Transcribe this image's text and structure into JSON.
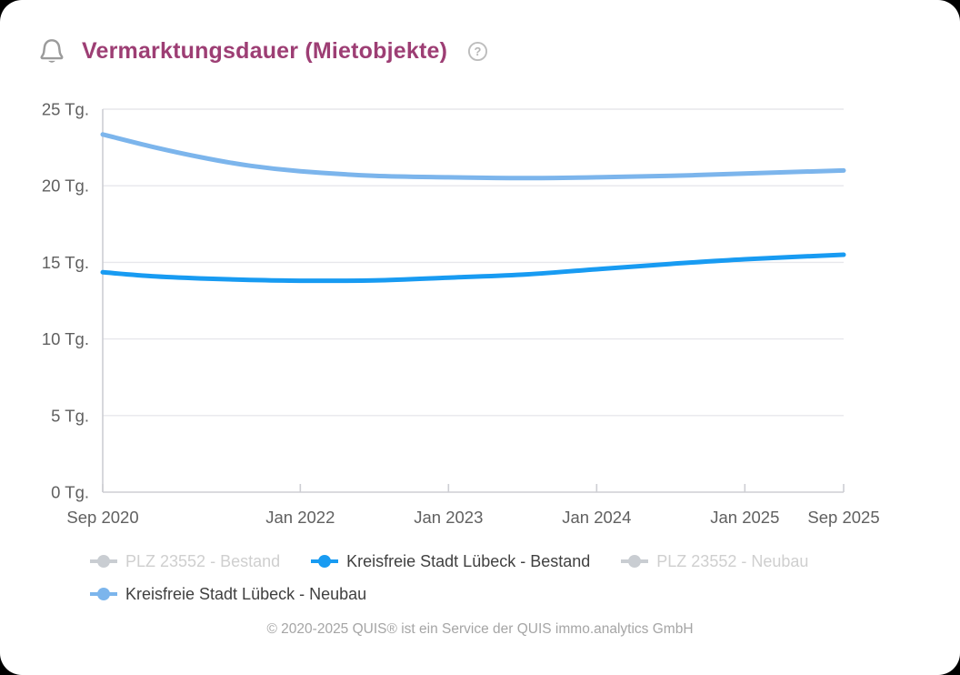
{
  "header": {
    "title": "Vermarktungsdauer (Mietobjekte)",
    "help_glyph": "?"
  },
  "colors": {
    "title": "#9d3e74",
    "axis_text": "#606060",
    "grid_line": "#e7e7ec",
    "axis_line": "#cdced3",
    "bestand_blue": "#189bf2",
    "neubau_blue": "#7cb5ec",
    "legend_disabled_marker": "#c9cdd2",
    "legend_disabled_text": "#cfcfcf",
    "legend_active_text": "#404040",
    "icon_gray": "#9b9b9b",
    "help_gray": "#b5b5b5"
  },
  "chart_data": {
    "type": "line",
    "title": "Vermarktungsdauer (Mietobjekte)",
    "ylabel": "",
    "xlabel": "",
    "y_unit": "Tg.",
    "ylim": [
      0,
      25
    ],
    "y_ticks": [
      0,
      5,
      10,
      15,
      20,
      25
    ],
    "x_range_months": 60,
    "x_ticks": [
      {
        "m": 0,
        "label": "Sep 2020"
      },
      {
        "m": 16,
        "label": "Jan 2022"
      },
      {
        "m": 28,
        "label": "Jan 2023"
      },
      {
        "m": 40,
        "label": "Jan 2024"
      },
      {
        "m": 52,
        "label": "Jan 2025"
      },
      {
        "m": 60,
        "label": "Sep 2025"
      }
    ],
    "grid": true,
    "legend_position": "bottom",
    "series": [
      {
        "name": "PLZ 23552 - Bestand",
        "active": false,
        "color": "#c9cdd2",
        "points": []
      },
      {
        "name": "Kreisfreie Stadt Lübeck - Bestand",
        "active": true,
        "color": "#189bf2",
        "points": [
          [
            0,
            14.35
          ],
          [
            4,
            14.1
          ],
          [
            8,
            13.95
          ],
          [
            12,
            13.85
          ],
          [
            16,
            13.8
          ],
          [
            22,
            13.82
          ],
          [
            28,
            14.0
          ],
          [
            34,
            14.2
          ],
          [
            40,
            14.55
          ],
          [
            46,
            14.9
          ],
          [
            52,
            15.2
          ],
          [
            60,
            15.5
          ]
        ]
      },
      {
        "name": "PLZ 23552 - Neubau",
        "active": false,
        "color": "#c9cdd2",
        "points": []
      },
      {
        "name": "Kreisfreie Stadt Lübeck - Neubau",
        "active": true,
        "color": "#7cb5ec",
        "points": [
          [
            0,
            23.35
          ],
          [
            4,
            22.55
          ],
          [
            8,
            21.85
          ],
          [
            12,
            21.3
          ],
          [
            16,
            20.95
          ],
          [
            22,
            20.65
          ],
          [
            28,
            20.55
          ],
          [
            34,
            20.5
          ],
          [
            40,
            20.55
          ],
          [
            46,
            20.65
          ],
          [
            52,
            20.8
          ],
          [
            60,
            21.0
          ]
        ]
      }
    ]
  },
  "footer": {
    "copyright": "© 2020-2025 QUIS® ist ein Service der QUIS immo.analytics GmbH"
  }
}
